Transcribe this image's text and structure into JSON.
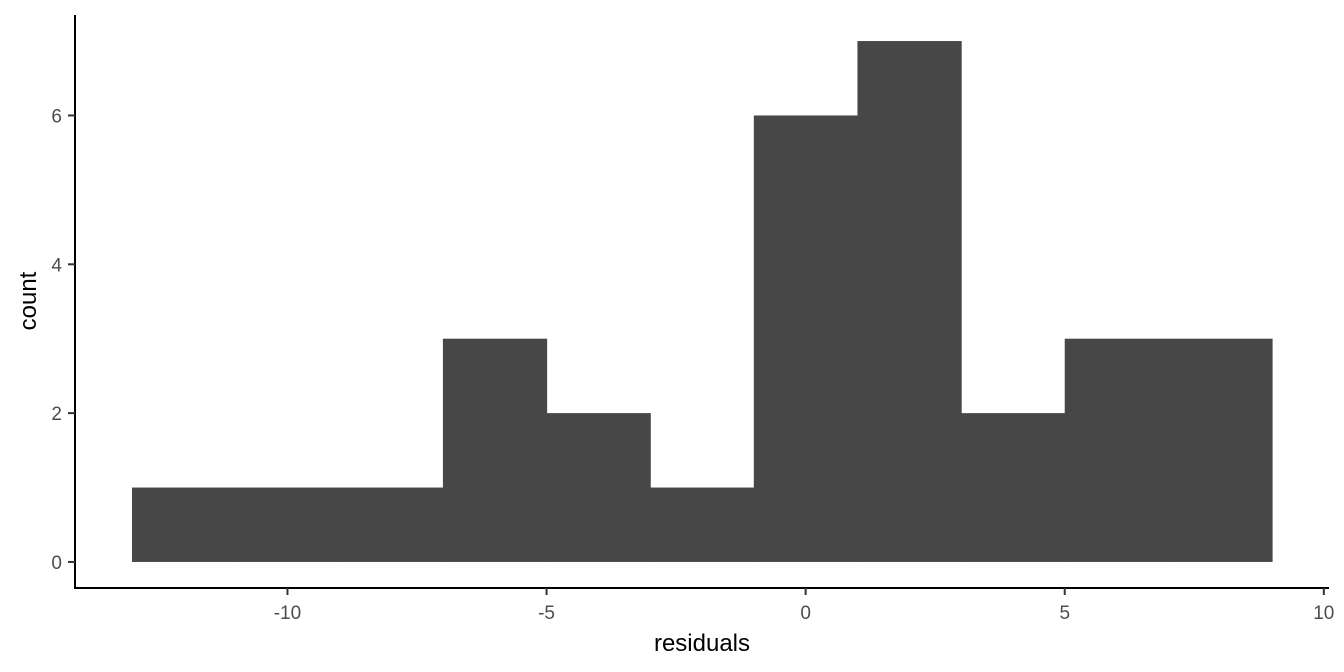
{
  "chart_data": {
    "type": "bar",
    "subtype": "histogram",
    "title": "",
    "xlabel": "residuals",
    "ylabel": "count",
    "bin_width": 2,
    "bins": [
      {
        "start": -13,
        "end": -11,
        "count": 1
      },
      {
        "start": -11,
        "end": -9,
        "count": 1
      },
      {
        "start": -9,
        "end": -7,
        "count": 1
      },
      {
        "start": -7,
        "end": -5,
        "count": 3
      },
      {
        "start": -5,
        "end": -3,
        "count": 2
      },
      {
        "start": -3,
        "end": -1,
        "count": 1
      },
      {
        "start": -1,
        "end": 1,
        "count": 6
      },
      {
        "start": 1,
        "end": 3,
        "count": 7
      },
      {
        "start": 3,
        "end": 5,
        "count": 2
      },
      {
        "start": 5,
        "end": 7,
        "count": 3
      },
      {
        "start": 7,
        "end": 9,
        "count": 3
      }
    ],
    "xlim": [
      -14.1,
      10.1
    ],
    "ylim": [
      -0.35,
      7.35
    ],
    "x_ticks": [
      -10,
      -5,
      0,
      5,
      10
    ],
    "x_tick_labels": [
      "-10",
      "-5",
      "0",
      "5",
      "10"
    ],
    "y_ticks": [
      0,
      2,
      4,
      6
    ],
    "y_tick_labels": [
      "0",
      "2",
      "4",
      "6"
    ],
    "bar_color": "#474747",
    "grid": false,
    "legend": "none"
  }
}
